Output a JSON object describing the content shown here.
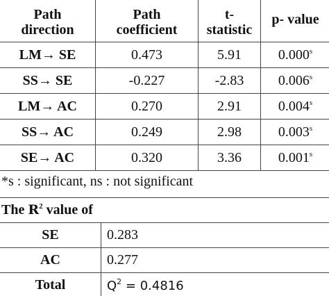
{
  "table": {
    "header": [
      [
        "Path",
        "direction"
      ],
      [
        "Path",
        "coefficient"
      ],
      [
        "t-",
        "statistic"
      ],
      [
        "p- value"
      ]
    ],
    "rows": [
      [
        "LM→ SE",
        "0.473",
        "5.91",
        {
          "value": "0.000",
          "sup": "s"
        }
      ],
      [
        "SS→ SE",
        "-0.227",
        "-2.83",
        {
          "value": "0.006",
          "sup": "s"
        }
      ],
      [
        "LM→ AC",
        "0.270",
        "2.91",
        {
          "value": "0.004",
          "sup": "s"
        }
      ],
      [
        "SS→ AC",
        "0.249",
        "2.98",
        {
          "value": "0.003",
          "sup": "s"
        }
      ],
      [
        "SE→ AC",
        "0.320",
        "3.36",
        {
          "value": "0.001",
          "sup": "s"
        }
      ]
    ]
  },
  "footnote": "*s : significant, ns : not significant",
  "r2_table": {
    "heading": {
      "prefix": "The",
      "symbol": "R",
      "sup": "2",
      "suffix": "value of"
    },
    "rows": [
      [
        "SE",
        "0.283"
      ],
      [
        "AC",
        "0.277"
      ]
    ],
    "total": {
      "label": "Total",
      "symbol": "Q",
      "sup": "2",
      "value": "= 0.4816"
    }
  }
}
